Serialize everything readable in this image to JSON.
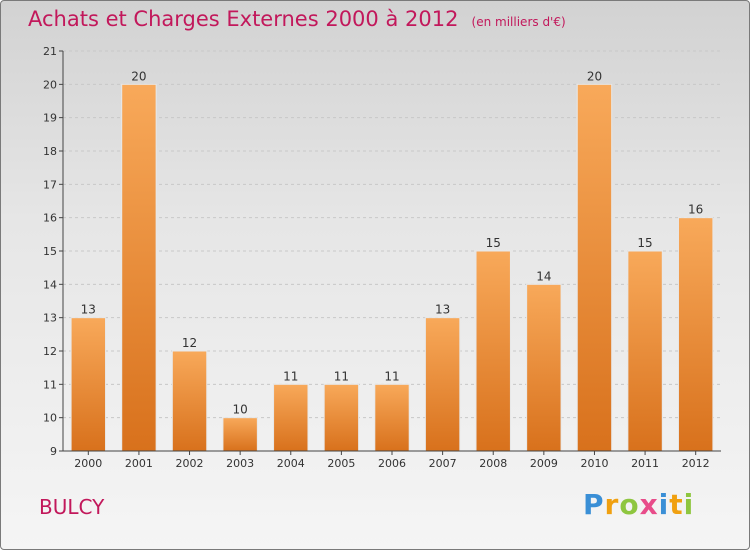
{
  "header": {
    "title": "Achats et Charges Externes 2000 à 2012",
    "subtitle": "(en milliers d'€)"
  },
  "commune": "BULCY",
  "logo": {
    "text": "Proxiti",
    "letters": [
      {
        "char": "P",
        "color": "#3a8fd6"
      },
      {
        "char": "r",
        "color": "#f0a010"
      },
      {
        "char": "o",
        "color": "#8ec63f"
      },
      {
        "char": "x",
        "color": "#e84c8a"
      },
      {
        "char": "i",
        "color": "#3a8fd6"
      },
      {
        "char": "t",
        "color": "#f0a010"
      },
      {
        "char": "i",
        "color": "#8ec63f"
      }
    ]
  },
  "colors": {
    "bar_top": "#f8a95a",
    "bar_bottom": "#d8711c",
    "axis": "#444444",
    "grid": "#c8c8c8",
    "title": "#c2185b"
  },
  "chart_data": {
    "type": "bar",
    "categories": [
      "2000",
      "2001",
      "2002",
      "2003",
      "2004",
      "2005",
      "2006",
      "2007",
      "2008",
      "2009",
      "2010",
      "2011",
      "2012"
    ],
    "values": [
      13,
      20,
      12,
      10,
      11,
      11,
      11,
      13,
      15,
      14,
      20,
      15,
      16
    ],
    "ylim": [
      9,
      21
    ],
    "yticks": [
      9,
      10,
      11,
      12,
      13,
      14,
      15,
      16,
      17,
      18,
      19,
      20,
      21
    ],
    "grid": true
  }
}
